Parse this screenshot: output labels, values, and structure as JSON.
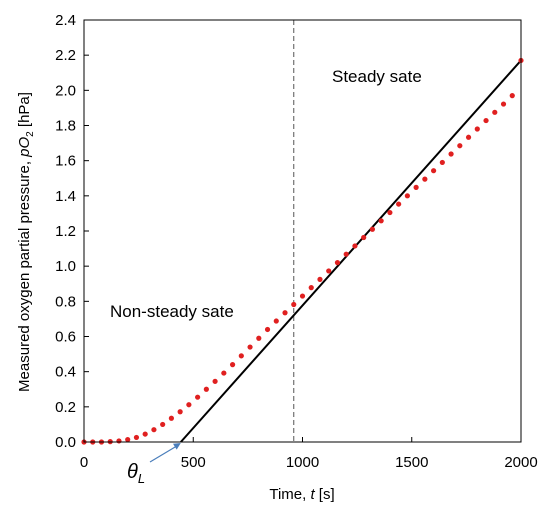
{
  "chart_data": {
    "type": "scatter",
    "title": "",
    "xlabel": {
      "prefix": "Time, ",
      "var": "t",
      "suffix": " [s]"
    },
    "ylabel": {
      "prefix": "Measured oxygen partial pressure, ",
      "var": "pO",
      "sub": "2",
      "suffix": " [hPa]"
    },
    "xlim": [
      0,
      2000
    ],
    "ylim": [
      0,
      2.4
    ],
    "x_ticks": [
      0,
      500,
      1000,
      1500,
      2000
    ],
    "x_tick_labels": [
      "0",
      "500",
      "1000",
      "1500",
      "2000"
    ],
    "y_ticks": [
      0,
      0.2,
      0.4,
      0.6,
      0.8,
      1.0,
      1.2,
      1.4,
      1.6,
      1.8,
      2.0,
      2.2,
      2.4
    ],
    "y_tick_labels": [
      "0.0",
      "0.2",
      "0.4",
      "0.6",
      "0.8",
      "1.0",
      "1.2",
      "1.4",
      "1.6",
      "1.8",
      "2.0",
      "2.2",
      "2.4"
    ],
    "grid": false,
    "series": [
      {
        "marker": "dot",
        "color": "#e02020",
        "x": [
          0,
          40,
          80,
          120,
          160,
          200,
          240,
          280,
          320,
          360,
          400,
          440,
          480,
          520,
          560,
          600,
          640,
          680,
          720,
          760,
          800,
          840,
          880,
          920,
          960,
          1000,
          1040,
          1080,
          1120,
          1160,
          1200,
          1240,
          1280,
          1320,
          1360,
          1400,
          1440,
          1480,
          1520,
          1560,
          1600,
          1640,
          1680,
          1720,
          1760,
          1800,
          1840,
          1880,
          1920,
          1960,
          2000
        ],
        "y": [
          0.0,
          0.0,
          0.0,
          0.002,
          0.006,
          0.014,
          0.026,
          0.045,
          0.07,
          0.1,
          0.135,
          0.172,
          0.212,
          0.255,
          0.3,
          0.345,
          0.392,
          0.44,
          0.49,
          0.54,
          0.59,
          0.64,
          0.688,
          0.735,
          0.782,
          0.83,
          0.878,
          0.925,
          0.973,
          1.02,
          1.068,
          1.115,
          1.163,
          1.21,
          1.258,
          1.305,
          1.353,
          1.4,
          1.448,
          1.495,
          1.543,
          1.59,
          1.638,
          1.685,
          1.733,
          1.78,
          1.828,
          1.875,
          1.922,
          1.97,
          2.17
        ]
      }
    ],
    "fit_line": {
      "color": "#000000",
      "x": [
        443,
        2000
      ],
      "y": [
        0.0,
        2.17
      ]
    },
    "vline": {
      "x": 960,
      "style": "dashed",
      "color": "#555555"
    },
    "annotations": {
      "steady": "Steady sate",
      "nonsteady": "Non-steady sate",
      "theta": {
        "main": "θ",
        "sub": "L",
        "x": 443,
        "arrow_color": "#4a7ebb"
      }
    }
  }
}
